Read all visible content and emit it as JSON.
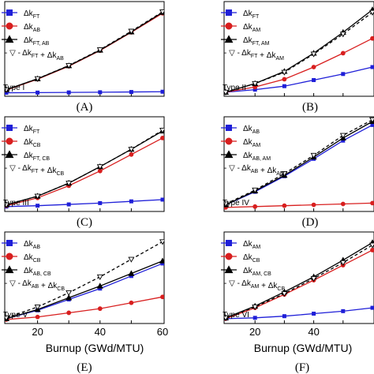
{
  "chart_data": [
    {
      "type": "line",
      "caption": "(A)",
      "type_label": "Type I",
      "x": [
        10,
        20,
        30,
        40,
        50,
        60
      ],
      "xlim": [
        10,
        60
      ],
      "ylim": [
        0,
        1.0
      ],
      "xticks": [],
      "xlabel": "",
      "legend_position": "top-left",
      "series": [
        {
          "name": "Δk_FT",
          "color": "#1f1fd8",
          "marker": "square",
          "dash": false,
          "values": [
            0.004,
            0.006,
            0.008,
            0.01,
            0.013,
            0.016
          ]
        },
        {
          "name": "Δk_AB",
          "color": "#d81f1f",
          "marker": "circle",
          "dash": false,
          "values": [
            0.035,
            0.16,
            0.31,
            0.49,
            0.7,
            0.92
          ]
        },
        {
          "name": "Δk_FT, AB",
          "color": "#000000",
          "marker": "triangle",
          "dash": false,
          "values": [
            0.04,
            0.165,
            0.315,
            0.495,
            0.705,
            0.93
          ]
        },
        {
          "name": "- ▽ - Δk_FT + Δk_AB",
          "color": "#000000",
          "marker": "triangle-down",
          "dash": true,
          "values": [
            0.039,
            0.166,
            0.318,
            0.5,
            0.713,
            0.936
          ]
        }
      ]
    },
    {
      "type": "line",
      "caption": "(B)",
      "type_label": "Type II",
      "x": [
        10,
        20,
        30,
        40,
        50,
        60
      ],
      "xlim": [
        10,
        60
      ],
      "ylim": [
        0,
        1.0
      ],
      "xticks": [],
      "xlabel": "",
      "legend_position": "top-left",
      "series": [
        {
          "name": "Δk_FT",
          "color": "#1f1fd8",
          "marker": "square",
          "dash": false,
          "values": [
            0.01,
            0.04,
            0.08,
            0.15,
            0.22,
            0.3
          ]
        },
        {
          "name": "Δk_AM",
          "color": "#d81f1f",
          "marker": "circle",
          "dash": false,
          "values": [
            0.01,
            0.07,
            0.16,
            0.3,
            0.46,
            0.63
          ]
        },
        {
          "name": "Δk_FT, AM",
          "color": "#000000",
          "marker": "triangle",
          "dash": false,
          "values": [
            0.01,
            0.11,
            0.25,
            0.46,
            0.7,
            0.96
          ]
        },
        {
          "name": "- ▽ - Δk_FT + Δk_AM",
          "color": "#000000",
          "marker": "triangle-down",
          "dash": true,
          "values": [
            0.01,
            0.11,
            0.24,
            0.45,
            0.68,
            0.93
          ]
        }
      ]
    },
    {
      "type": "line",
      "caption": "(C)",
      "type_label": "Type III",
      "x": [
        10,
        20,
        30,
        40,
        50,
        60
      ],
      "xlim": [
        10,
        60
      ],
      "ylim": [
        0,
        1.0
      ],
      "xticks": [],
      "xlabel": "",
      "legend_position": "top-left",
      "series": [
        {
          "name": "Δk_FT",
          "color": "#1f1fd8",
          "marker": "square",
          "dash": false,
          "values": [
            0.02,
            0.03,
            0.045,
            0.06,
            0.08,
            0.1
          ]
        },
        {
          "name": "Δk_CB",
          "color": "#d81f1f",
          "marker": "circle",
          "dash": false,
          "values": [
            0.03,
            0.12,
            0.26,
            0.43,
            0.62,
            0.81
          ]
        },
        {
          "name": "Δk_FT, CB",
          "color": "#000000",
          "marker": "triangle",
          "dash": false,
          "values": [
            0.04,
            0.14,
            0.29,
            0.48,
            0.68,
            0.89
          ]
        },
        {
          "name": "- ▽ - Δk_FT + Δk_CB",
          "color": "#000000",
          "marker": "triangle-down",
          "dash": true,
          "values": [
            0.04,
            0.14,
            0.29,
            0.48,
            0.68,
            0.9
          ]
        }
      ]
    },
    {
      "type": "line",
      "caption": "(D)",
      "type_label": "Type IV",
      "x": [
        10,
        20,
        30,
        40,
        50,
        60
      ],
      "xlim": [
        10,
        60
      ],
      "ylim": [
        0,
        1.0
      ],
      "xticks": [],
      "xlabel": "",
      "legend_position": "top-left",
      "series": [
        {
          "name": "Δk_AB",
          "color": "#1f1fd8",
          "marker": "square",
          "dash": false,
          "values": [
            0.04,
            0.19,
            0.37,
            0.57,
            0.78,
            0.96
          ]
        },
        {
          "name": "Δk_AM",
          "color": "#d81f1f",
          "marker": "circle",
          "dash": false,
          "values": [
            0.01,
            0.02,
            0.03,
            0.04,
            0.05,
            0.06
          ]
        },
        {
          "name": "Δk_AB, AM",
          "color": "#000000",
          "marker": "triangle",
          "dash": false,
          "values": [
            0.04,
            0.2,
            0.38,
            0.59,
            0.81,
            1.0
          ]
        },
        {
          "name": "- ▽ - Δk_AB + Δk_AM",
          "color": "#000000",
          "marker": "triangle-down",
          "dash": true,
          "values": [
            0.05,
            0.21,
            0.4,
            0.61,
            0.84,
            1.02
          ]
        }
      ]
    },
    {
      "type": "line",
      "caption": "(E)",
      "type_label": "Type V",
      "x": [
        10,
        20,
        30,
        40,
        50,
        60
      ],
      "xlim": [
        10,
        60
      ],
      "ylim": [
        0,
        1.0
      ],
      "xticks": [
        20,
        40,
        60
      ],
      "xlabel": "Burnup (GWd/MTU)",
      "legend_position": "top-left",
      "series": [
        {
          "name": "Δk_AB",
          "color": "#1f1fd8",
          "marker": "square",
          "dash": false,
          "values": [
            0.02,
            0.12,
            0.25,
            0.38,
            0.53,
            0.68
          ]
        },
        {
          "name": "Δk_CB",
          "color": "#d81f1f",
          "marker": "circle",
          "dash": false,
          "values": [
            0.01,
            0.04,
            0.09,
            0.14,
            0.21,
            0.28
          ]
        },
        {
          "name": "Δk_AB, CB",
          "color": "#000000",
          "marker": "triangle",
          "dash": false,
          "values": [
            0.02,
            0.13,
            0.27,
            0.41,
            0.56,
            0.71
          ]
        },
        {
          "name": "- ▽ - Δk_AB + Δk_CB",
          "color": "#000000",
          "marker": "triangle-down",
          "dash": true,
          "values": [
            0.03,
            0.16,
            0.33,
            0.52,
            0.73,
            0.94
          ]
        }
      ]
    },
    {
      "type": "line",
      "caption": "(F)",
      "type_label": "Type VI",
      "x": [
        10,
        20,
        30,
        40,
        50,
        60
      ],
      "xlim": [
        10,
        60
      ],
      "ylim": [
        0,
        1.0
      ],
      "xticks": [
        20,
        40
      ],
      "xlabel": "Burnup (GWd/MTU)",
      "legend_position": "top-left",
      "series": [
        {
          "name": "Δk_AM",
          "color": "#1f1fd8",
          "marker": "square",
          "dash": false,
          "values": [
            0.02,
            0.03,
            0.05,
            0.08,
            0.11,
            0.15
          ]
        },
        {
          "name": "Δk_CB",
          "color": "#d81f1f",
          "marker": "circle",
          "dash": false,
          "values": [
            0.02,
            0.15,
            0.31,
            0.48,
            0.66,
            0.84
          ]
        },
        {
          "name": "Δk_AM, CB",
          "color": "#000000",
          "marker": "triangle",
          "dash": false,
          "values": [
            0.03,
            0.17,
            0.34,
            0.52,
            0.72,
            0.93
          ]
        },
        {
          "name": "- ▽ - Δk_AM + Δk_CB",
          "color": "#000000",
          "marker": "triangle-down",
          "dash": true,
          "values": [
            0.03,
            0.16,
            0.32,
            0.5,
            0.69,
            0.9
          ]
        }
      ]
    }
  ]
}
